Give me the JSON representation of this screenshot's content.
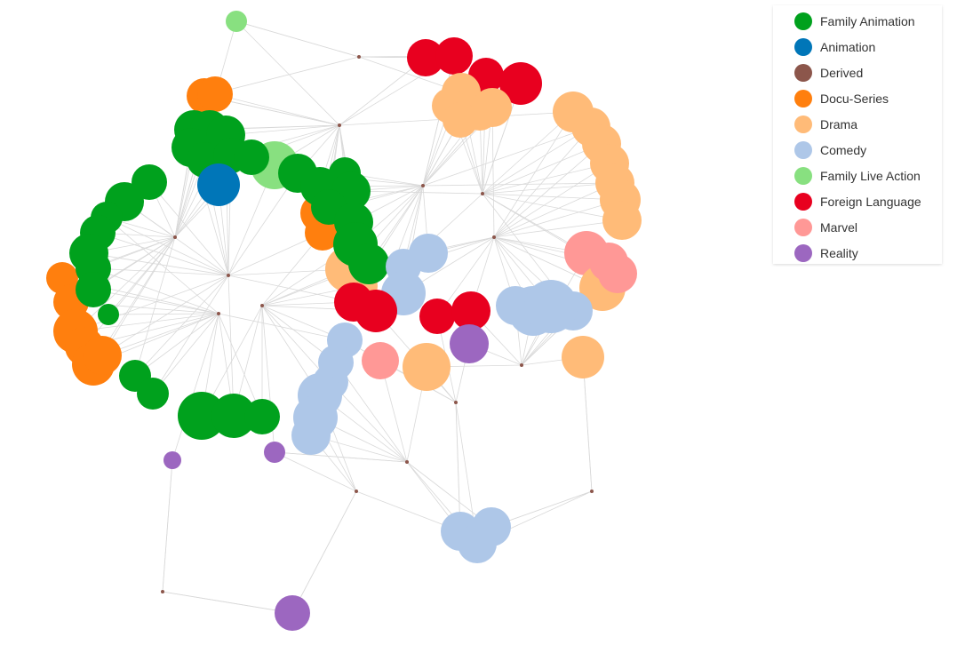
{
  "legend": {
    "items": [
      {
        "label": "Family Animation",
        "color": "#00a11d"
      },
      {
        "label": "Animation",
        "color": "#0076b8"
      },
      {
        "label": "Derived",
        "color": "#8c564b"
      },
      {
        "label": "Docu-Series",
        "color": "#ff7f0e"
      },
      {
        "label": "Drama",
        "color": "#ffbb78"
      },
      {
        "label": "Comedy",
        "color": "#aec7e8"
      },
      {
        "label": "Family Live Action",
        "color": "#88e080"
      },
      {
        "label": "Foreign Language",
        "color": "#e8001f"
      },
      {
        "label": "Marvel",
        "color": "#ff9896"
      },
      {
        "label": "Reality",
        "color": "#9c67c0"
      }
    ]
  },
  "edge_color": "#d9d9d9"
}
